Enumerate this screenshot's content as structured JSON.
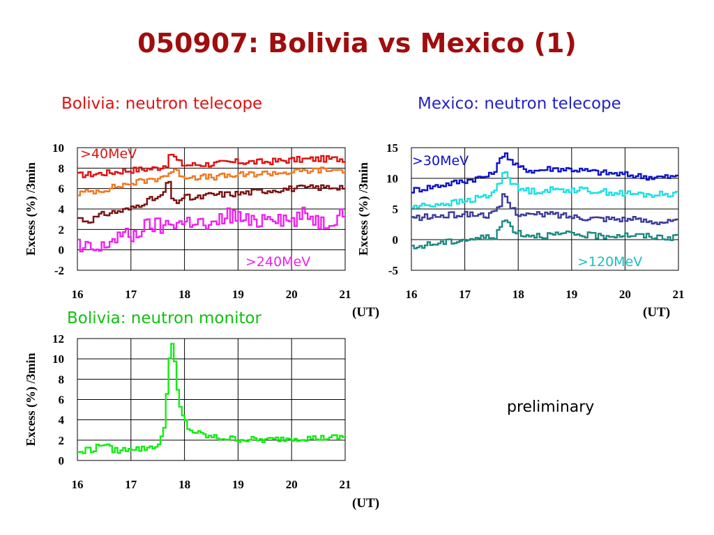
{
  "slide": {
    "title": "050907: Bolivia vs Mexico (1)",
    "note": "preliminary",
    "subtitles": {
      "bolivia_nt": "Bolivia: neutron telecope",
      "mexico_nt": "Mexico: neutron telecope",
      "bolivia_nm": "Bolivia: neutron monitor"
    },
    "ut_label": "(UT)",
    "colors": {
      "title": "#a00d0d",
      "bolivia_nt": "#e01010",
      "mexico_nt": "#2323c8",
      "bolivia_nm": "#10d010"
    }
  },
  "chart_data": [
    {
      "id": "bolivia-neutron-telescope",
      "type": "line",
      "title": "Bolivia: neutron telecope",
      "xlabel": "(UT)",
      "ylabel": "Excess (%) /3min",
      "xlim": [
        16,
        21
      ],
      "ylim": [
        -2,
        10
      ],
      "xticks": [
        16,
        17,
        18,
        19,
        20,
        21
      ],
      "yticks": [
        -2,
        0,
        2,
        4,
        6,
        8,
        10
      ],
      "grid": true,
      "step": true,
      "annotations": [
        ">40MeV",
        ">240MeV"
      ],
      "series": [
        {
          "color": "#e01010",
          "x": [
            16,
            16.5,
            17,
            17.5,
            17.6,
            17.7,
            17.75,
            17.8,
            17.9,
            18,
            18.5,
            19,
            19.5,
            20,
            20.5,
            21
          ],
          "y": [
            7.3,
            7.5,
            7.8,
            8.0,
            8.2,
            8.4,
            9.6,
            9.2,
            8.6,
            8.3,
            8.4,
            8.6,
            8.6,
            8.8,
            8.9,
            8.9
          ]
        },
        {
          "color": "#f07820",
          "x": [
            16,
            16.5,
            17,
            17.5,
            17.7,
            17.8,
            18,
            18.5,
            19,
            19.5,
            20,
            20.5,
            21
          ],
          "y": [
            5.5,
            5.9,
            6.5,
            7.0,
            7.4,
            7.8,
            7.2,
            7.1,
            7.3,
            7.5,
            7.6,
            7.8,
            7.8
          ]
        },
        {
          "color": "#7a1010",
          "x": [
            16,
            16.2,
            16.5,
            17,
            17.3,
            17.6,
            17.7,
            17.8,
            18,
            18.2,
            18.5,
            19,
            19.5,
            20,
            20.5,
            21
          ],
          "y": [
            3.2,
            2.8,
            3.5,
            4.0,
            4.8,
            5.2,
            7.0,
            4.5,
            5.2,
            5.0,
            5.4,
            5.5,
            5.8,
            6.0,
            6.1,
            6.2
          ]
        },
        {
          "color": "#f020f0",
          "x": [
            16,
            16.1,
            16.2,
            16.4,
            16.6,
            16.8,
            17,
            17.2,
            17.4,
            17.6,
            17.8,
            18,
            18.2,
            18.5,
            18.8,
            19,
            19.3,
            19.6,
            20,
            20.3,
            20.6,
            21
          ],
          "y": [
            1.0,
            -0.5,
            0.3,
            -0.2,
            0.8,
            1.5,
            1.2,
            2.0,
            2.5,
            2.2,
            2.8,
            2.6,
            3.0,
            2.0,
            3.5,
            3.2,
            2.5,
            3.6,
            2.8,
            3.5,
            2.6,
            3.8
          ]
        }
      ]
    },
    {
      "id": "mexico-neutron-telescope",
      "type": "line",
      "title": "Mexico: neutron telecope",
      "xlabel": "(UT)",
      "ylabel": "Excess (%) /3min",
      "xlim": [
        16,
        21
      ],
      "ylim": [
        -5,
        15
      ],
      "xticks": [
        16,
        17,
        18,
        19,
        20,
        21
      ],
      "yticks": [
        -5,
        0,
        5,
        10,
        15
      ],
      "grid": true,
      "step": true,
      "annotations": [
        ">30MeV",
        ">120MeV"
      ],
      "series": [
        {
          "color": "#0a10c8",
          "x": [
            16,
            16.5,
            17,
            17.5,
            17.65,
            17.75,
            17.85,
            18,
            18.3,
            18.6,
            19,
            19.5,
            20,
            20.5,
            21
          ],
          "y": [
            8.0,
            8.8,
            9.6,
            10.5,
            12.5,
            14.5,
            13.0,
            11.8,
            11.2,
            11.6,
            11.5,
            11.0,
            10.6,
            10.2,
            10.2
          ]
        },
        {
          "color": "#19e0e6",
          "x": [
            16,
            16.5,
            17,
            17.5,
            17.65,
            17.75,
            17.85,
            18,
            18.3,
            18.6,
            19,
            19.5,
            20,
            20.5,
            21
          ],
          "y": [
            5.3,
            5.8,
            6.2,
            7.3,
            9.0,
            11.5,
            9.8,
            8.3,
            7.9,
            8.1,
            8.2,
            7.9,
            7.5,
            7.3,
            7.5
          ]
        },
        {
          "color": "#3a3a9a",
          "x": [
            16,
            16.5,
            17,
            17.5,
            17.65,
            17.75,
            17.85,
            18,
            18.3,
            18.6,
            19,
            19.5,
            20,
            20.5,
            21
          ],
          "y": [
            3.5,
            3.8,
            4.2,
            4.0,
            5.0,
            7.6,
            5.5,
            4.3,
            4.0,
            4.2,
            3.8,
            3.5,
            3.4,
            3.0,
            2.9
          ]
        },
        {
          "color": "#1a8a80",
          "x": [
            16,
            16.3,
            16.6,
            17,
            17.3,
            17.6,
            17.75,
            17.9,
            18.1,
            18.5,
            19,
            19.5,
            20,
            20.5,
            21
          ],
          "y": [
            -1.5,
            -0.8,
            -0.5,
            0.0,
            0.3,
            0.6,
            3.5,
            1.8,
            0.8,
            0.7,
            0.9,
            0.6,
            0.8,
            0.5,
            0.3
          ]
        }
      ]
    },
    {
      "id": "bolivia-neutron-monitor",
      "type": "line",
      "title": "Bolivia: neutron monitor",
      "xlabel": "(UT)",
      "ylabel": "Excess (%) /3min",
      "xlim": [
        16,
        21
      ],
      "ylim": [
        0,
        12
      ],
      "xticks": [
        16,
        17,
        18,
        19,
        20,
        21
      ],
      "yticks": [
        0,
        2,
        4,
        6,
        8,
        10,
        12
      ],
      "grid": true,
      "step": true,
      "annotations": [],
      "series": [
        {
          "color": "#10ee10",
          "x": [
            16,
            16.1,
            16.2,
            16.3,
            16.5,
            16.6,
            16.8,
            17,
            17.2,
            17.4,
            17.55,
            17.65,
            17.7,
            17.75,
            17.8,
            17.85,
            17.9,
            18,
            18.1,
            18.3,
            18.5,
            19,
            19.5,
            20,
            20.5,
            21
          ],
          "y": [
            1.0,
            0.6,
            1.3,
            1.0,
            1.8,
            1.2,
            0.9,
            1.3,
            1.1,
            1.4,
            1.5,
            4.0,
            9.0,
            11.7,
            11.2,
            8.0,
            5.5,
            4.0,
            3.0,
            2.6,
            2.3,
            2.1,
            2.0,
            2.2,
            2.2,
            2.3
          ]
        }
      ]
    }
  ]
}
